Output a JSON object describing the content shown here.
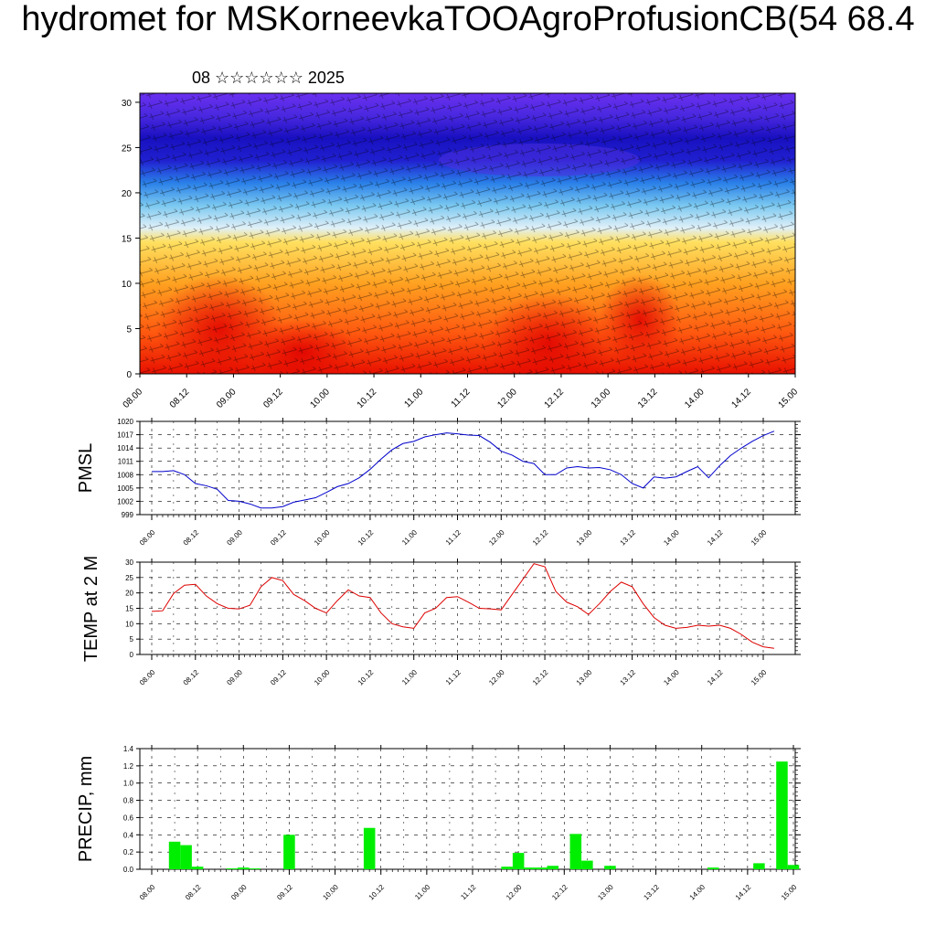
{
  "title": "hydromet for MSKorneevkaTOOAgroProfusionCB(54 68.4",
  "subtitle": "08 ☆☆☆☆☆☆ 2025",
  "time_ticks": [
    "08.00",
    "08.12",
    "09.00",
    "09.12",
    "10.00",
    "10.12",
    "11.00",
    "11.12",
    "12.00",
    "12.12",
    "13.00",
    "13.12",
    "14.00",
    "14.12",
    "15.00"
  ],
  "chart_data": [
    {
      "type": "heatmap",
      "name_hint": "cross-section",
      "yticks": [
        0,
        5,
        10,
        15,
        20,
        25,
        30
      ],
      "ylim": [
        0,
        31
      ],
      "x_categories": [
        "08.00",
        "08.12",
        "09.00",
        "09.12",
        "10.00",
        "10.12",
        "11.00",
        "11.12",
        "12.00",
        "12.12",
        "13.00",
        "13.12",
        "14.00",
        "14.12",
        "15.00"
      ],
      "colors": {
        "low": "#e00000",
        "mid": "#ffd040",
        "top": "#2020d0"
      }
    },
    {
      "type": "line",
      "ylabel": "PMSL",
      "yticks": [
        999,
        1002,
        1005,
        1008,
        1011,
        1014,
        1017,
        1020
      ],
      "ylim": [
        999,
        1020
      ],
      "color": "#0000cc",
      "x_start": 0,
      "x_step": 3,
      "values": [
        1008.7,
        1008.7,
        1008.9,
        1008.0,
        1006.0,
        1005.5,
        1004.7,
        1002.2,
        1002.0,
        1001.4,
        1000.5,
        1000.5,
        1000.8,
        1001.8,
        1002.3,
        1002.8,
        1004.0,
        1005.3,
        1006.0,
        1007.3,
        1009.2,
        1011.5,
        1013.6,
        1015.0,
        1015.5,
        1016.5,
        1017.0,
        1017.4,
        1017.2,
        1016.9,
        1016.8,
        1015.3,
        1013.3,
        1012.4,
        1011.0,
        1010.5,
        1008.0,
        1008.0,
        1009.5,
        1009.8,
        1009.5,
        1009.6,
        1009.1,
        1008.0,
        1006.0,
        1005.0,
        1007.5,
        1007.2,
        1007.5,
        1008.7,
        1009.8,
        1007.3,
        1010.0,
        1012.3,
        1014.0,
        1015.5,
        1016.8,
        1017.8
      ]
    },
    {
      "type": "line",
      "ylabel": "TEMP at 2 M",
      "yticks": [
        0,
        5,
        10,
        15,
        20,
        25,
        30
      ],
      "ylim": [
        0,
        30
      ],
      "color": "#dd0000",
      "x_start": 0,
      "x_step": 3,
      "values": [
        14.0,
        14.2,
        19.8,
        22.5,
        22.8,
        19.0,
        16.5,
        15.0,
        14.8,
        16.0,
        22.0,
        25.0,
        24.0,
        19.5,
        17.5,
        15.0,
        13.5,
        17.5,
        21.0,
        19.0,
        18.5,
        13.5,
        10.0,
        9.0,
        8.5,
        13.5,
        15.0,
        18.5,
        18.8,
        17.0,
        15.0,
        14.8,
        14.5,
        19.5,
        24.5,
        29.5,
        28.5,
        20.5,
        17.0,
        15.5,
        13.0,
        16.5,
        20.5,
        23.5,
        22.0,
        16.5,
        12.0,
        9.5,
        8.5,
        8.8,
        9.5,
        9.2,
        9.5,
        8.5,
        6.5,
        4.0,
        2.5,
        2.0
      ]
    },
    {
      "type": "bar",
      "ylabel": "PRECIP, mm",
      "yticks": [
        0.0,
        0.2,
        0.4,
        0.6,
        0.8,
        1.0,
        1.2,
        1.4
      ],
      "ylim": [
        0,
        1.4
      ],
      "color": "#00ee00",
      "x_start": 0,
      "x_step": 3,
      "values": [
        0,
        0,
        0.32,
        0.28,
        0.03,
        0,
        0,
        0.01,
        0.02,
        0.01,
        0,
        0,
        0.4,
        0,
        0,
        0,
        0,
        0,
        0,
        0.48,
        0,
        0,
        0,
        0,
        0,
        0,
        0,
        0,
        0,
        0,
        0,
        0.03,
        0.19,
        0.02,
        0.02,
        0.04,
        0,
        0.41,
        0.1,
        0,
        0.04,
        0,
        0,
        0,
        0,
        0,
        0,
        0,
        0,
        0.02,
        0,
        0,
        0,
        0.07,
        0,
        1.25,
        0.05,
        0
      ]
    }
  ]
}
